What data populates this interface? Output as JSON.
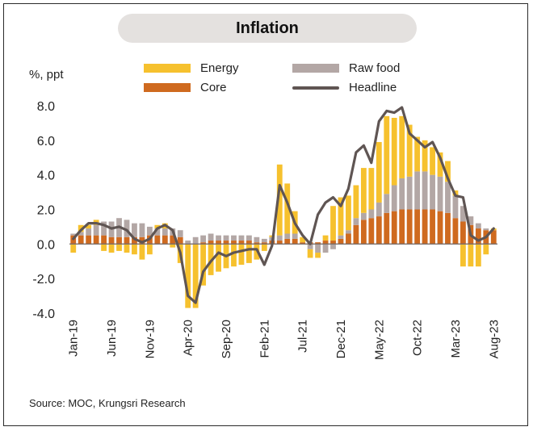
{
  "title": "Inflation",
  "source": "Source: MOC, Krungsri Research",
  "colors": {
    "energy": "#f6c12e",
    "raw_food": "#b3a7a5",
    "core": "#cf6a1f",
    "headline": "#5f5553"
  },
  "chart_data": {
    "type": "bar",
    "stacked": true,
    "ylabel": "%, ppt",
    "ylim": [
      -4.0,
      8.0
    ],
    "yticks": [
      -4.0,
      -2.0,
      0.0,
      2.0,
      4.0,
      6.0,
      8.0
    ],
    "ytick_labels": [
      "-4.0",
      "-2.0",
      "0.0",
      "2.0",
      "4.0",
      "6.0",
      "8.0"
    ],
    "grid": false,
    "legend_position": "top",
    "x_tick_labels": [
      "Jan-19",
      "Jun-19",
      "Nov-19",
      "Apr-20",
      "Sep-20",
      "Feb-21",
      "Jul-21",
      "Dec-21",
      "May-22",
      "Oct-22",
      "Mar-23",
      "Aug-23"
    ],
    "x": [
      "Jan-19",
      "Feb-19",
      "Mar-19",
      "Apr-19",
      "May-19",
      "Jun-19",
      "Jul-19",
      "Aug-19",
      "Sep-19",
      "Oct-19",
      "Nov-19",
      "Dec-19",
      "Jan-20",
      "Feb-20",
      "Mar-20",
      "Apr-20",
      "May-20",
      "Jun-20",
      "Jul-20",
      "Aug-20",
      "Sep-20",
      "Oct-20",
      "Nov-20",
      "Dec-20",
      "Jan-21",
      "Feb-21",
      "Mar-21",
      "Apr-21",
      "May-21",
      "Jun-21",
      "Jul-21",
      "Aug-21",
      "Sep-21",
      "Oct-21",
      "Nov-21",
      "Dec-21",
      "Jan-22",
      "Feb-22",
      "Mar-22",
      "Apr-22",
      "May-22",
      "Jun-22",
      "Jul-22",
      "Aug-22",
      "Sep-22",
      "Oct-22",
      "Nov-22",
      "Dec-22",
      "Jan-23",
      "Feb-23",
      "Mar-23",
      "Apr-23",
      "May-23",
      "Jun-23",
      "Jul-23",
      "Aug-23"
    ],
    "series": [
      {
        "name": "Core",
        "values": [
          0.5,
          0.5,
          0.5,
          0.5,
          0.5,
          0.4,
          0.4,
          0.4,
          0.4,
          0.4,
          0.5,
          0.5,
          0.5,
          0.5,
          0.4,
          0.0,
          0.0,
          0.1,
          0.2,
          0.2,
          0.2,
          0.2,
          0.2,
          0.2,
          0.1,
          0.1,
          0.2,
          0.2,
          0.3,
          0.3,
          0.1,
          0.1,
          0.1,
          0.2,
          0.2,
          0.3,
          0.6,
          1.1,
          1.4,
          1.5,
          1.6,
          1.8,
          1.9,
          2.0,
          2.0,
          2.0,
          2.0,
          2.0,
          1.9,
          1.8,
          1.5,
          1.3,
          1.1,
          0.9,
          0.8,
          0.8
        ]
      },
      {
        "name": "Raw food",
        "values": [
          0.1,
          0.2,
          0.4,
          0.6,
          0.8,
          0.9,
          1.1,
          1.0,
          0.8,
          0.8,
          0.5,
          0.4,
          0.4,
          0.4,
          0.4,
          0.2,
          0.4,
          0.4,
          0.4,
          0.3,
          0.3,
          0.3,
          0.3,
          0.3,
          0.3,
          0.2,
          0.2,
          0.3,
          0.3,
          0.3,
          0.0,
          -0.3,
          -0.5,
          -0.5,
          -0.3,
          0.2,
          0.2,
          0.4,
          0.4,
          0.5,
          0.8,
          1.1,
          1.5,
          1.8,
          1.9,
          2.2,
          2.2,
          2.0,
          2.0,
          1.8,
          1.3,
          0.9,
          0.5,
          0.3,
          0.1,
          0.0
        ]
      },
      {
        "name": "Energy",
        "values": [
          -0.5,
          0.4,
          0.2,
          0.3,
          -0.4,
          -0.5,
          -0.4,
          -0.5,
          -0.6,
          -0.9,
          -0.6,
          0.2,
          0.3,
          -0.2,
          -1.1,
          -3.7,
          -3.7,
          -2.4,
          -1.8,
          -1.6,
          -1.4,
          -1.3,
          -1.2,
          -1.1,
          -0.9,
          -0.4,
          0.1,
          4.1,
          2.9,
          1.3,
          0.3,
          -0.5,
          -0.3,
          0.3,
          2.0,
          2.2,
          2.0,
          1.9,
          2.6,
          2.4,
          3.5,
          4.5,
          3.9,
          3.6,
          3.0,
          2.0,
          1.8,
          1.6,
          1.4,
          1.2,
          0.3,
          -1.3,
          -1.3,
          -1.3,
          -0.6,
          0.1
        ]
      },
      {
        "name": "Headline",
        "type": "line",
        "values": [
          0.3,
          0.8,
          1.2,
          1.2,
          1.1,
          0.9,
          1.0,
          0.8,
          0.3,
          0.1,
          0.3,
          0.9,
          1.1,
          0.8,
          -0.5,
          -3.0,
          -3.4,
          -1.6,
          -1.0,
          -0.5,
          -0.7,
          -0.5,
          -0.4,
          -0.3,
          -0.3,
          -1.2,
          -0.1,
          3.4,
          2.4,
          1.2,
          0.5,
          0.0,
          1.7,
          2.4,
          2.7,
          2.2,
          3.2,
          5.3,
          5.7,
          4.7,
          7.1,
          7.7,
          7.6,
          7.9,
          6.4,
          6.0,
          5.6,
          5.9,
          5.0,
          3.8,
          2.8,
          2.7,
          0.5,
          0.2,
          0.4,
          0.9
        ]
      }
    ]
  }
}
